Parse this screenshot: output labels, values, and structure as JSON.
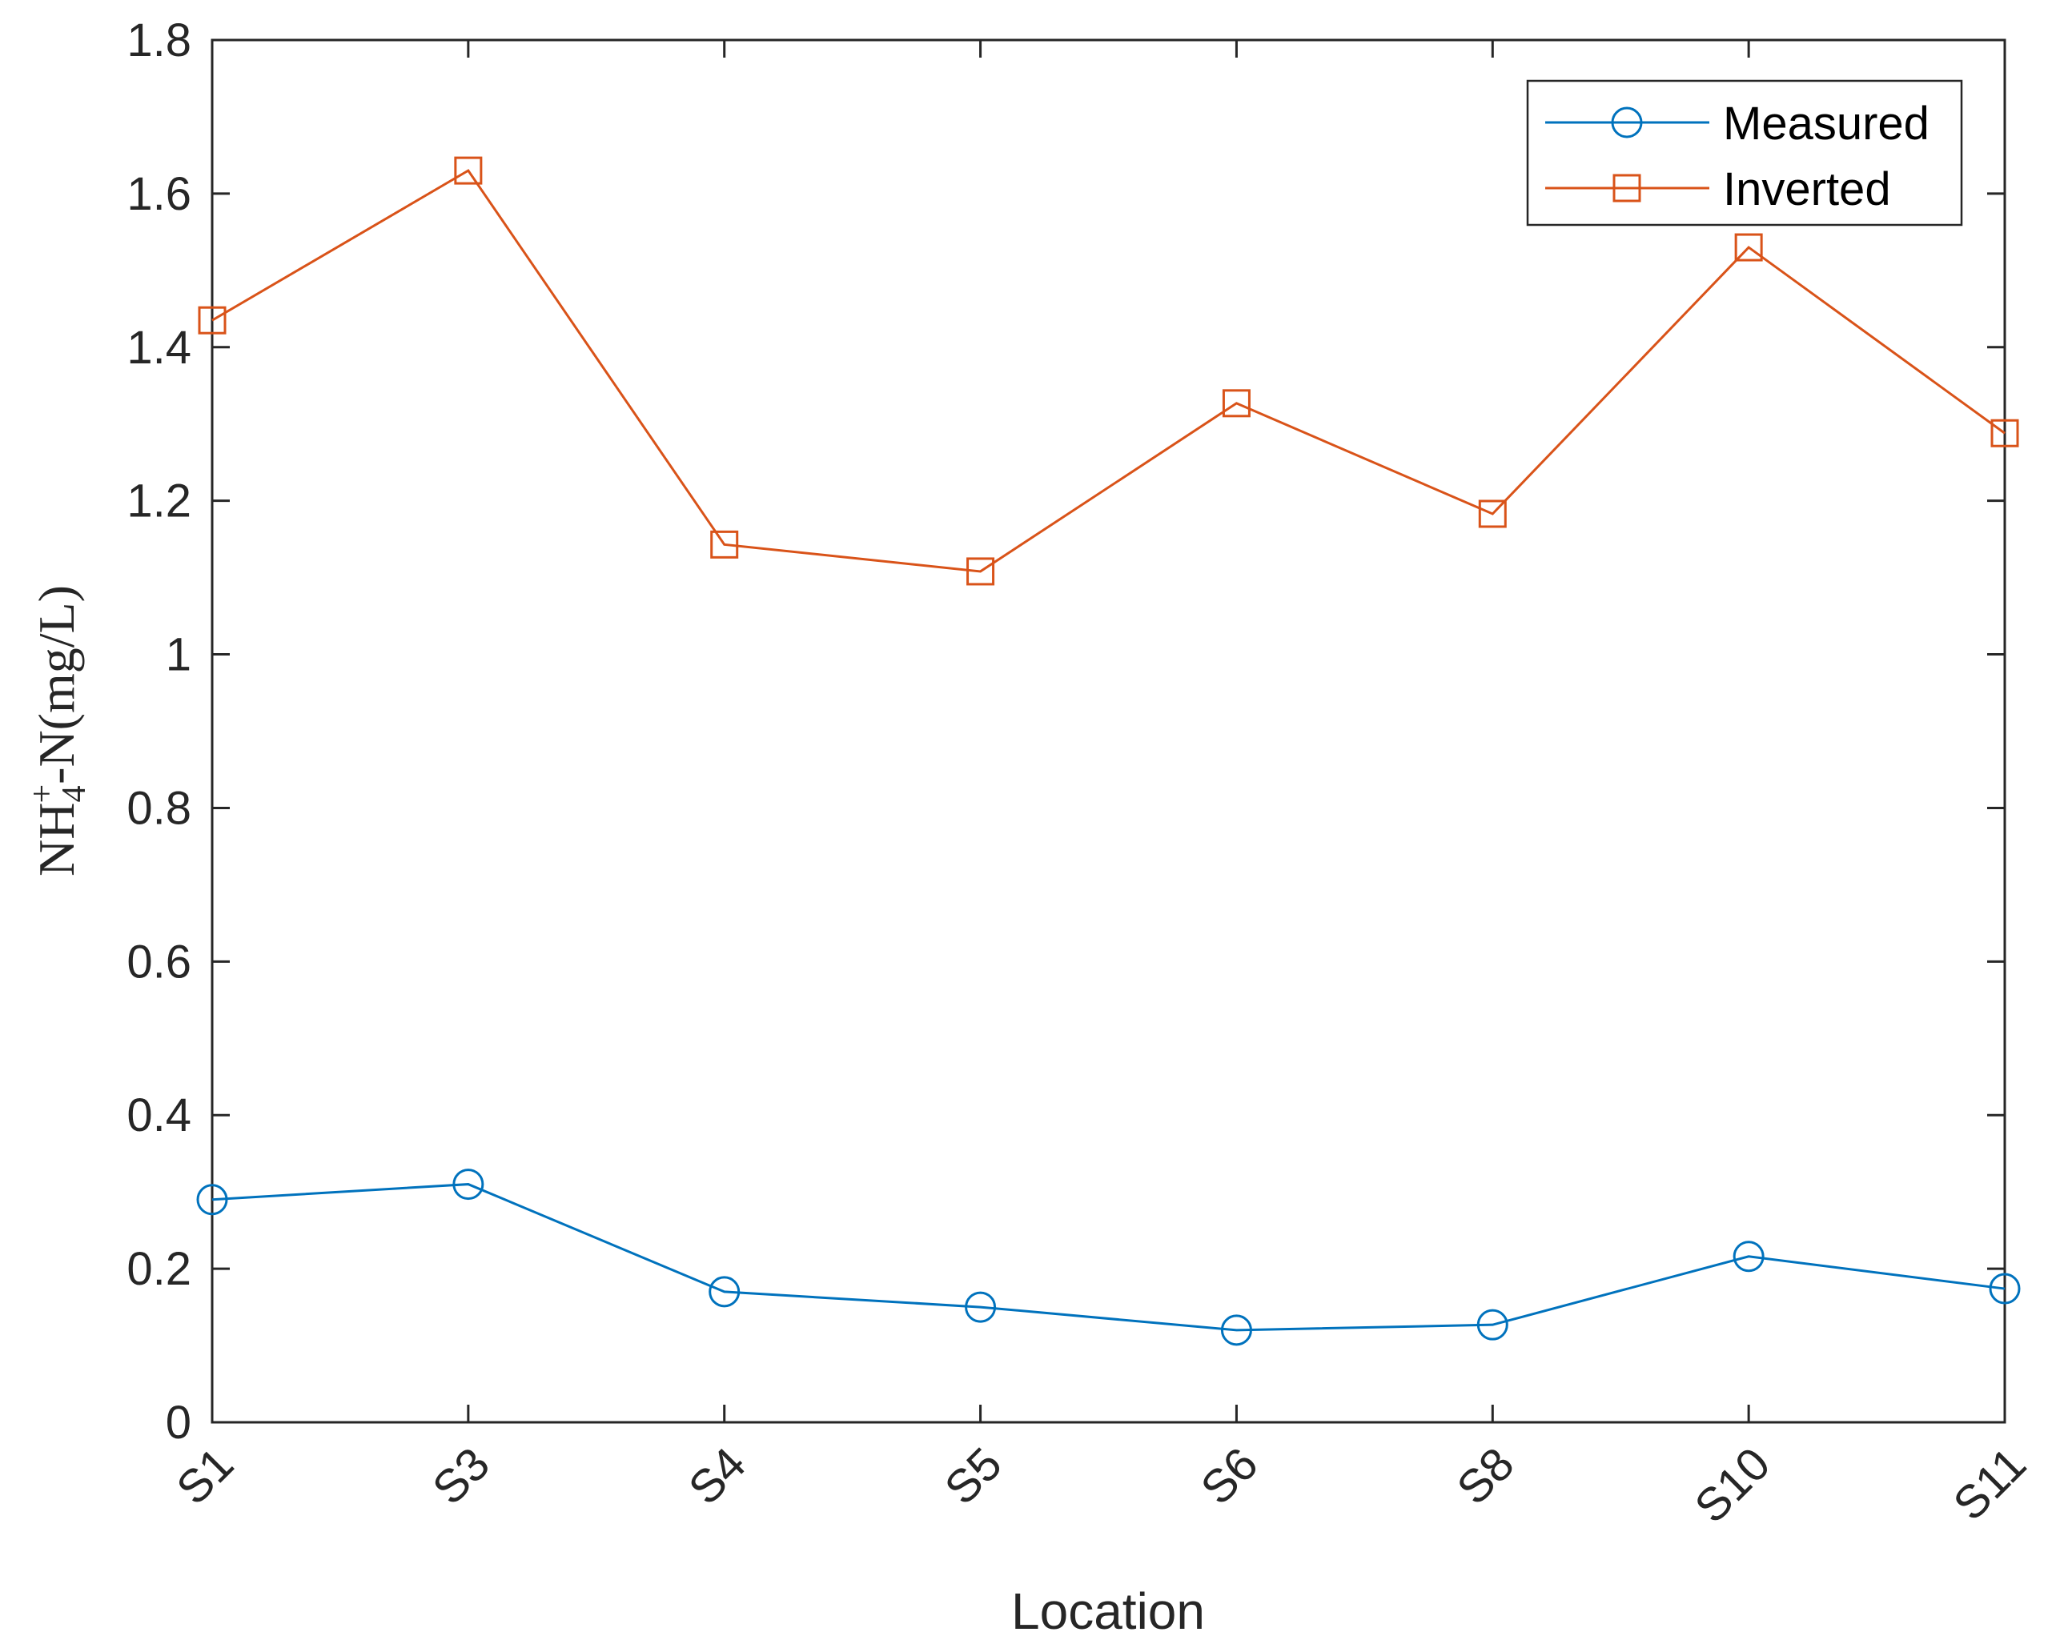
{
  "chart_data": {
    "type": "line",
    "categories": [
      "S1",
      "S3",
      "S4",
      "S5",
      "S6",
      "S8",
      "S10",
      "S11"
    ],
    "series": [
      {
        "name": "Measured",
        "marker": "circle",
        "color": "#0072BD",
        "values": [
          0.29,
          0.31,
          0.17,
          0.15,
          0.12,
          0.127,
          0.216,
          0.174
        ]
      },
      {
        "name": "Inverted",
        "marker": "square",
        "color": "#D95319",
        "values": [
          1.435,
          1.63,
          1.143,
          1.108,
          1.327,
          1.183,
          1.53,
          1.288
        ]
      }
    ],
    "xlabel": "Location",
    "ylabel": {
      "prefix": "NH",
      "subscript": "4",
      "superscript": "+",
      "suffix": "-N(mg/L)"
    },
    "ylim": [
      0,
      1.8
    ],
    "yticks": [
      "0",
      "0.2",
      "0.4",
      "0.6",
      "0.8",
      "1",
      "1.2",
      "1.4",
      "1.6",
      "1.8"
    ],
    "grid": false,
    "legend_position": "top-right"
  }
}
